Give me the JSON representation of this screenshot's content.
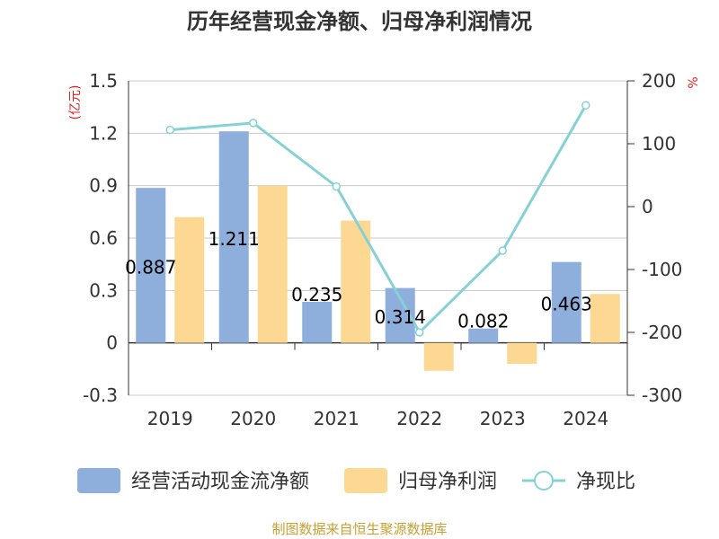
{
  "title": "历年经营现金净额、归母净利润情况",
  "source": "制图数据来自恒生聚源数据库",
  "colors": {
    "cash_flow": "#8eaedc",
    "net_profit": "#fdd893",
    "ratio": "#86d1d6",
    "axis_text": "#333333",
    "unit_text": "#e02020",
    "source_text": "#c8a032"
  },
  "chart_data": {
    "type": "bar",
    "categories": [
      "2019",
      "2020",
      "2021",
      "2022",
      "2023",
      "2024"
    ],
    "y_left": {
      "unit": "(亿元)",
      "ticks": [
        "1.5",
        "1.2",
        "0.9",
        "0.6",
        "0.3",
        "0",
        "-0.3"
      ],
      "range": [
        -0.3,
        1.5
      ]
    },
    "y_right": {
      "unit": "%",
      "ticks": [
        "200",
        "100",
        "0",
        "-100",
        "-200",
        "-300"
      ],
      "range": [
        -300,
        200
      ]
    },
    "series": [
      {
        "name": "经营活动现金流净额",
        "type": "bar",
        "axis": "left",
        "values": [
          0.887,
          1.211,
          0.235,
          0.314,
          0.082,
          0.463
        ],
        "labels": [
          "0.887",
          "1.211",
          "0.235",
          "0.314",
          "0.082",
          "0.463"
        ]
      },
      {
        "name": "归母净利润",
        "type": "bar",
        "axis": "left",
        "values": [
          0.72,
          0.9,
          0.7,
          -0.16,
          -0.12,
          0.28
        ]
      },
      {
        "name": "净现比",
        "type": "line",
        "axis": "right",
        "values": [
          122,
          133,
          32,
          -200,
          -70,
          161
        ]
      }
    ],
    "legend_position": "bottom",
    "grid": true
  }
}
